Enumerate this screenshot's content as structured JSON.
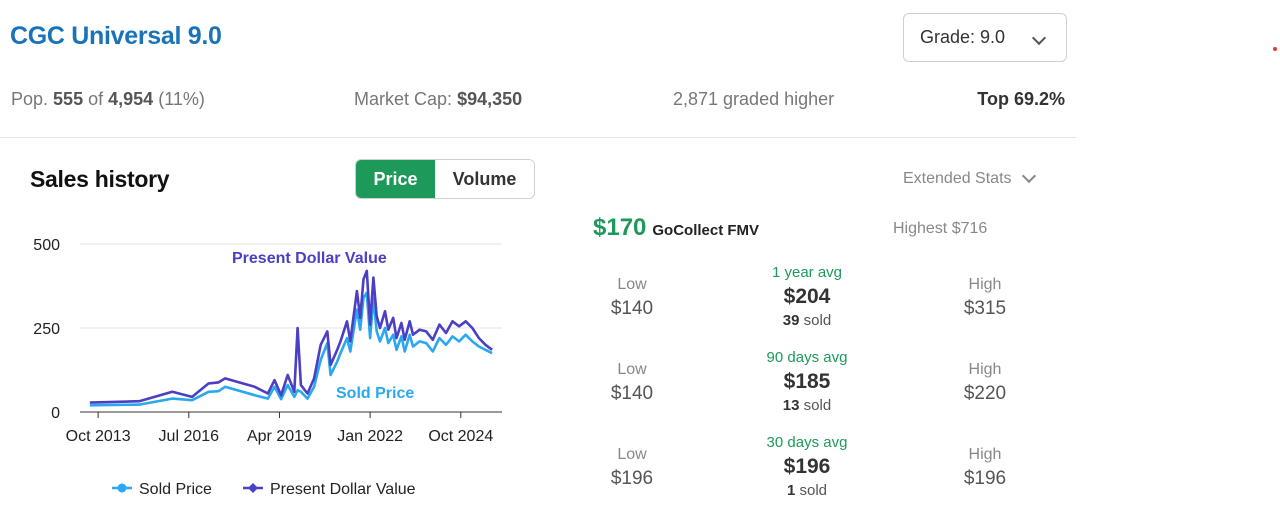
{
  "header": {
    "title": "CGC Universal 9.0",
    "grade_select": "Grade: 9.0"
  },
  "stats": {
    "pop_prefix": "Pop.",
    "pop_count": "555",
    "pop_of": "of",
    "pop_total": "4,954",
    "pop_pct": "(11%)",
    "market_cap_label": "Market Cap:",
    "market_cap_value": "$94,350",
    "graded_higher": "2,871 graded higher",
    "top_pct": "Top 69.2%"
  },
  "sales": {
    "title": "Sales history",
    "toggle_price": "Price",
    "toggle_volume": "Volume",
    "extended_stats": "Extended Stats"
  },
  "fmv": {
    "value": "$170",
    "label": "GoCollect FMV",
    "highest": "Highest $716"
  },
  "periods": [
    {
      "low_label": "Low",
      "low": "$140",
      "avg_label": "1 year avg",
      "avg": "$204",
      "sold_count": "39",
      "sold_label": "sold",
      "high_label": "High",
      "high": "$315"
    },
    {
      "low_label": "Low",
      "low": "$140",
      "avg_label": "90 days avg",
      "avg": "$185",
      "sold_count": "13",
      "sold_label": "sold",
      "high_label": "High",
      "high": "$220"
    },
    {
      "low_label": "Low",
      "low": "$196",
      "avg_label": "30 days avg",
      "avg": "$196",
      "sold_count": "1",
      "sold_label": "sold",
      "high_label": "High",
      "high": "$196"
    }
  ],
  "chart_data": {
    "type": "line",
    "x_tick_labels": [
      "Oct 2013",
      "Jul 2016",
      "Apr 2019",
      "Jan 2022",
      "Oct 2024"
    ],
    "y_ticks": [
      0,
      250,
      500
    ],
    "ylim": [
      0,
      500
    ],
    "xlim": [
      2013.2,
      2026.0
    ],
    "grid": true,
    "legend_position": "bottom",
    "colors": {
      "sold": "#29a8f0",
      "present": "#4b3fc3"
    },
    "series": [
      {
        "name": "Sold Price",
        "x": [
          2013.5,
          2015.0,
          2016.0,
          2016.6,
          2017.1,
          2017.4,
          2017.6,
          2018.5,
          2018.9,
          2019.1,
          2019.3,
          2019.5,
          2019.7,
          2019.8,
          2019.9,
          2020.1,
          2020.3,
          2020.5,
          2020.7,
          2020.8,
          2021.0,
          2021.1,
          2021.3,
          2021.4,
          2021.6,
          2021.7,
          2021.8,
          2021.9,
          2022.0,
          2022.1,
          2022.2,
          2022.3,
          2022.45,
          2022.55,
          2022.7,
          2022.8,
          2022.95,
          2023.05,
          2023.2,
          2023.3,
          2023.5,
          2023.7,
          2023.9,
          2024.1,
          2024.3,
          2024.5,
          2024.7,
          2024.9,
          2025.1,
          2025.3,
          2025.5,
          2025.7
        ],
        "y": [
          20,
          22,
          40,
          35,
          60,
          62,
          75,
          50,
          40,
          75,
          38,
          80,
          45,
          65,
          60,
          40,
          75,
          155,
          205,
          110,
          150,
          175,
          220,
          180,
          305,
          245,
          340,
          355,
          220,
          340,
          240,
          210,
          250,
          205,
          230,
          185,
          225,
          180,
          230,
          195,
          210,
          205,
          180,
          220,
          200,
          225,
          210,
          230,
          210,
          195,
          185,
          175
        ]
      },
      {
        "name": "Present Dollar Value",
        "x": [
          2013.5,
          2015.0,
          2016.0,
          2016.6,
          2017.1,
          2017.4,
          2017.6,
          2018.5,
          2018.9,
          2019.1,
          2019.3,
          2019.5,
          2019.7,
          2019.8,
          2019.9,
          2020.1,
          2020.3,
          2020.5,
          2020.7,
          2020.8,
          2021.0,
          2021.1,
          2021.3,
          2021.4,
          2021.6,
          2021.7,
          2021.8,
          2021.9,
          2022.0,
          2022.1,
          2022.2,
          2022.3,
          2022.45,
          2022.55,
          2022.7,
          2022.8,
          2022.95,
          2023.05,
          2023.2,
          2023.3,
          2023.5,
          2023.7,
          2023.9,
          2024.1,
          2024.3,
          2024.5,
          2024.7,
          2024.9,
          2025.1,
          2025.3,
          2025.5,
          2025.7
        ],
        "y": [
          28,
          32,
          60,
          45,
          85,
          88,
          100,
          75,
          55,
          95,
          50,
          110,
          60,
          250,
          80,
          55,
          100,
          200,
          240,
          140,
          185,
          210,
          270,
          210,
          360,
          280,
          395,
          420,
          260,
          400,
          285,
          250,
          300,
          245,
          280,
          220,
          265,
          215,
          270,
          230,
          245,
          240,
          215,
          260,
          235,
          270,
          255,
          270,
          250,
          220,
          200,
          185
        ]
      }
    ],
    "annotations": [
      "Present Dollar Value",
      "Sold Price"
    ]
  }
}
